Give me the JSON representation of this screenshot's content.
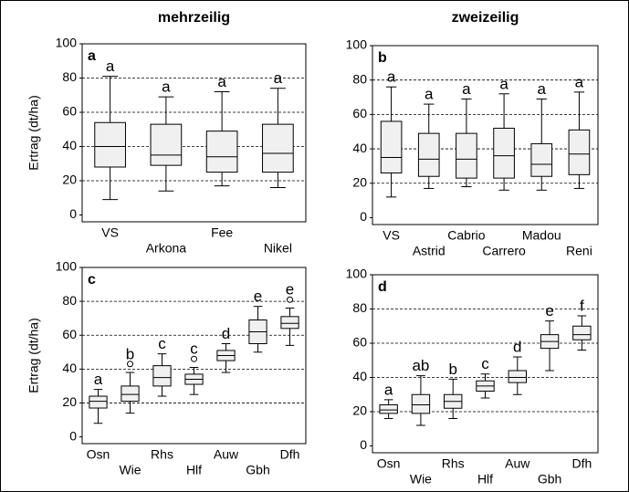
{
  "chart_data": [
    {
      "type": "box",
      "title": "mehrzeilig",
      "panel": "a",
      "ylabel": "Ertrag (dt/ha)",
      "ylim": [
        -4,
        100
      ],
      "yticks": [
        0,
        20,
        40,
        60,
        80,
        100
      ],
      "grid": true,
      "categories": [
        "VS",
        "Arkona",
        "Fee",
        "Nikel"
      ],
      "boxes": [
        {
          "min": 9,
          "q1": 28,
          "median": 40,
          "q3": 54,
          "max": 81
        },
        {
          "min": 14,
          "q1": 29,
          "median": 35,
          "q3": 53,
          "max": 69
        },
        {
          "min": 17,
          "q1": 25,
          "median": 34,
          "q3": 49,
          "max": 72
        },
        {
          "min": 16,
          "q1": 25,
          "median": 36,
          "q3": 53,
          "max": 74
        }
      ],
      "letters": [
        "a",
        "a",
        "a",
        "a"
      ]
    },
    {
      "type": "box",
      "title": "zweizeilig",
      "panel": "b",
      "ylim": [
        -4,
        100
      ],
      "yticks": [
        0,
        20,
        40,
        60,
        80,
        100
      ],
      "grid": true,
      "categories": [
        "VS",
        "Astrid",
        "Cabrio",
        "Carrero",
        "Madou",
        "Reni"
      ],
      "boxes": [
        {
          "min": 12,
          "q1": 26,
          "median": 35,
          "q3": 56,
          "max": 76
        },
        {
          "min": 17,
          "q1": 24,
          "median": 34,
          "q3": 49,
          "max": 66
        },
        {
          "min": 18,
          "q1": 23,
          "median": 34,
          "q3": 49,
          "max": 69
        },
        {
          "min": 16,
          "q1": 23,
          "median": 36,
          "q3": 52,
          "max": 72
        },
        {
          "min": 16,
          "q1": 24,
          "median": 31,
          "q3": 43,
          "max": 69
        },
        {
          "min": 17,
          "q1": 25,
          "median": 37,
          "q3": 51,
          "max": 73
        }
      ],
      "letters": [
        "a",
        "a",
        "a",
        "a",
        "a",
        "a"
      ]
    },
    {
      "type": "box",
      "panel": "c",
      "ylabel": "Ertrag (dt/ha)",
      "ylim": [
        -4,
        100
      ],
      "yticks": [
        0,
        20,
        40,
        60,
        80,
        100
      ],
      "grid": true,
      "categories": [
        "Osn",
        "Wie",
        "Rhs",
        "Hlf",
        "Auw",
        "Gbh",
        "Dfh"
      ],
      "boxes": [
        {
          "min": 8,
          "q1": 17,
          "median": 21,
          "q3": 24,
          "max": 28
        },
        {
          "min": 14,
          "q1": 21,
          "median": 25,
          "q3": 30,
          "max": 38,
          "outliers": [
            43
          ]
        },
        {
          "min": 24,
          "q1": 30,
          "median": 35,
          "q3": 42,
          "max": 49
        },
        {
          "min": 25,
          "q1": 31,
          "median": 34,
          "q3": 37,
          "max": 41,
          "outliers": [
            46
          ]
        },
        {
          "min": 38,
          "q1": 45,
          "median": 48,
          "q3": 51,
          "max": 55
        },
        {
          "min": 50,
          "q1": 55,
          "median": 62,
          "q3": 69,
          "max": 77
        },
        {
          "min": 54,
          "q1": 64,
          "median": 67,
          "q3": 71,
          "max": 76,
          "outliers": [
            81
          ]
        }
      ],
      "letters": [
        "a",
        "b",
        "c",
        "c",
        "d",
        "e",
        "e"
      ]
    },
    {
      "type": "box",
      "panel": "d",
      "ylim": [
        -4,
        100
      ],
      "yticks": [
        0,
        20,
        40,
        60,
        80,
        100
      ],
      "grid": true,
      "categories": [
        "Osn",
        "Wie",
        "Rhs",
        "Hlf",
        "Auw",
        "Gbh",
        "Dfh"
      ],
      "boxes": [
        {
          "min": 16,
          "q1": 19,
          "median": 21,
          "q3": 24,
          "max": 27
        },
        {
          "min": 12,
          "q1": 19,
          "median": 24,
          "q3": 30,
          "max": 41
        },
        {
          "min": 16,
          "q1": 22,
          "median": 26,
          "q3": 30,
          "max": 39
        },
        {
          "min": 28,
          "q1": 32,
          "median": 35,
          "q3": 38,
          "max": 42
        },
        {
          "min": 30,
          "q1": 37,
          "median": 40,
          "q3": 44,
          "max": 52
        },
        {
          "min": 44,
          "q1": 57,
          "median": 61,
          "q3": 65,
          "max": 73
        },
        {
          "min": 56,
          "q1": 62,
          "median": 65,
          "q3": 70,
          "max": 76
        }
      ],
      "letters": [
        "a",
        "ab",
        "b",
        "c",
        "d",
        "e",
        "f"
      ]
    }
  ]
}
